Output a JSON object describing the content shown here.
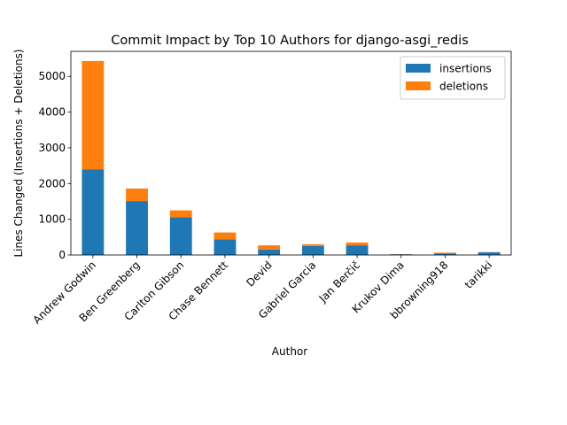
{
  "chart_data": {
    "type": "bar",
    "stacked": true,
    "title": "Commit Impact by Top 10 Authors for django-asgi_redis",
    "xlabel": "Author",
    "ylabel": "Lines Changed (Insertions + Deletions)",
    "ylim": [
      0,
      5700
    ],
    "yticks": [
      0,
      1000,
      2000,
      3000,
      4000,
      5000
    ],
    "grid": false,
    "legend_position": "top-right",
    "categories": [
      "Andrew Godwin",
      "Ben Greenberg",
      "Carlton Gibson",
      "Chase Bennett",
      "Devid",
      "Gabriel Garcia",
      "Jan Berčič",
      "Krukov Dima",
      "bbrowning918",
      "tarikki"
    ],
    "series": [
      {
        "name": "insertions",
        "color": "#1f77b4",
        "values": [
          2400,
          1510,
          1060,
          440,
          150,
          250,
          270,
          20,
          45,
          75
        ]
      },
      {
        "name": "deletions",
        "color": "#ff7f0e",
        "values": [
          3030,
          350,
          190,
          190,
          120,
          50,
          80,
          5,
          20,
          5
        ]
      }
    ]
  }
}
